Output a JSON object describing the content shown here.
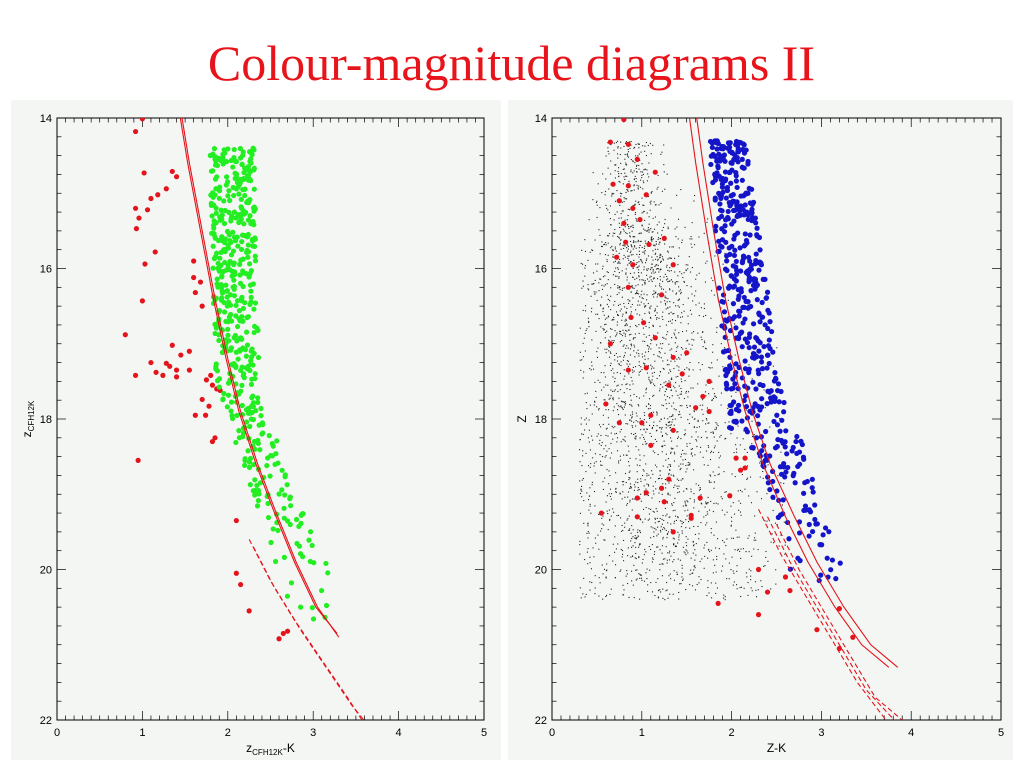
{
  "slide": {
    "title": "Colour-magnitude diagrams II"
  },
  "colors": {
    "title": "#e8141b",
    "red": "#e3141b",
    "green": "#22ee22",
    "blue": "#1414c8",
    "field": "#222222",
    "curve": "#e3141b"
  },
  "chart_data": [
    {
      "type": "scatter",
      "xlabel_main": "z",
      "xlabel_sub": "CFH12K",
      "xlabel_tail": "-K",
      "ylabel_main": "z",
      "ylabel_sub": "CFH12K",
      "xlim": [
        0,
        5
      ],
      "ylim": [
        22,
        14
      ],
      "y_inverted": true,
      "grid": false,
      "xticks": [
        "0",
        "1",
        "2",
        "3",
        "4",
        "5"
      ],
      "yticks": [
        "14",
        "16",
        "18",
        "20",
        "22"
      ],
      "series": [
        {
          "color": "red",
          "points": [
            [
              0.92,
              14.18
            ],
            [
              1.0,
              14.01
            ],
            [
              1.02,
              14.73
            ],
            [
              1.35,
              14.71
            ],
            [
              1.4,
              14.78
            ],
            [
              1.28,
              14.94
            ],
            [
              1.18,
              15.02
            ],
            [
              1.1,
              15.07
            ],
            [
              0.92,
              15.2
            ],
            [
              1.06,
              15.22
            ],
            [
              0.96,
              15.33
            ],
            [
              0.93,
              15.47
            ],
            [
              1.15,
              15.78
            ],
            [
              1.03,
              15.94
            ],
            [
              1.6,
              15.9
            ],
            [
              1.6,
              16.12
            ],
            [
              1.68,
              16.18
            ],
            [
              1.0,
              16.43
            ],
            [
              1.7,
              16.5
            ],
            [
              1.62,
              16.32
            ],
            [
              0.8,
              16.88
            ],
            [
              1.35,
              17.02
            ],
            [
              1.55,
              17.1
            ],
            [
              1.45,
              17.15
            ],
            [
              1.1,
              17.25
            ],
            [
              1.28,
              17.26
            ],
            [
              1.32,
              17.3
            ],
            [
              1.4,
              17.35
            ],
            [
              1.16,
              17.38
            ],
            [
              1.24,
              17.42
            ],
            [
              1.55,
              17.35
            ],
            [
              1.4,
              17.44
            ],
            [
              0.92,
              17.42
            ],
            [
              1.8,
              17.42
            ],
            [
              1.82,
              17.55
            ],
            [
              1.75,
              17.48
            ],
            [
              1.87,
              17.6
            ],
            [
              1.91,
              17.62
            ],
            [
              1.7,
              17.74
            ],
            [
              1.78,
              17.83
            ],
            [
              1.74,
              17.95
            ],
            [
              1.62,
              17.95
            ],
            [
              1.85,
              18.25
            ],
            [
              1.82,
              18.3
            ],
            [
              0.95,
              18.55
            ],
            [
              2.1,
              19.35
            ],
            [
              2.1,
              20.05
            ],
            [
              2.15,
              20.2
            ],
            [
              2.25,
              20.55
            ],
            [
              2.7,
              20.82
            ],
            [
              2.65,
              20.85
            ],
            [
              2.6,
              20.92
            ]
          ]
        },
        {
          "color": "green",
          "generator": "seeded",
          "seed": 7,
          "count": 520
        }
      ],
      "curves": [
        {
          "style": "solid",
          "points": [
            [
              1.45,
              13.9
            ],
            [
              1.55,
              14.6
            ],
            [
              1.7,
              15.5
            ],
            [
              1.85,
              16.4
            ],
            [
              2.0,
              17.2
            ],
            [
              2.15,
              17.9
            ],
            [
              2.35,
              18.6
            ],
            [
              2.55,
              19.2
            ],
            [
              2.8,
              19.9
            ],
            [
              3.05,
              20.5
            ],
            [
              3.3,
              20.9
            ]
          ]
        },
        {
          "style": "solid",
          "points": [
            [
              1.43,
              13.9
            ],
            [
              1.53,
              14.6
            ],
            [
              1.68,
              15.5
            ],
            [
              1.83,
              16.4
            ],
            [
              1.98,
              17.2
            ],
            [
              2.13,
              17.9
            ],
            [
              2.33,
              18.6
            ],
            [
              2.53,
              19.2
            ],
            [
              2.78,
              19.9
            ],
            [
              3.03,
              20.5
            ],
            [
              3.28,
              20.85
            ]
          ]
        },
        {
          "style": "dashed",
          "points": [
            [
              2.25,
              19.6
            ],
            [
              2.5,
              20.15
            ],
            [
              2.8,
              20.7
            ],
            [
              3.1,
              21.2
            ],
            [
              3.4,
              21.7
            ],
            [
              3.6,
              22.05
            ]
          ]
        },
        {
          "style": "dashed",
          "points": [
            [
              2.3,
              19.7
            ],
            [
              2.55,
              20.25
            ],
            [
              2.85,
              20.8
            ],
            [
              3.15,
              21.3
            ],
            [
              3.45,
              21.8
            ],
            [
              3.63,
              22.05
            ]
          ]
        }
      ]
    },
    {
      "type": "scatter",
      "xlabel_main": "Z-K",
      "ylabel_main": "Z",
      "xlim": [
        0,
        5
      ],
      "ylim": [
        22,
        14
      ],
      "y_inverted": true,
      "grid": false,
      "xticks": [
        "0",
        "1",
        "2",
        "3",
        "4",
        "5"
      ],
      "yticks": [
        "14",
        "16",
        "18",
        "20",
        "22"
      ],
      "series": [
        {
          "color": "red",
          "points": [
            [
              0.65,
              14.32
            ],
            [
              0.85,
              14.35
            ],
            [
              0.8,
              14.02
            ],
            [
              0.95,
              14.55
            ],
            [
              1.15,
              14.72
            ],
            [
              0.68,
              14.88
            ],
            [
              0.85,
              14.9
            ],
            [
              1.05,
              15.02
            ],
            [
              0.75,
              15.1
            ],
            [
              0.9,
              15.2
            ],
            [
              0.8,
              15.4
            ],
            [
              0.98,
              15.35
            ],
            [
              0.82,
              15.65
            ],
            [
              1.08,
              15.68
            ],
            [
              1.25,
              15.6
            ],
            [
              0.72,
              15.85
            ],
            [
              0.9,
              15.95
            ],
            [
              1.35,
              15.95
            ],
            [
              0.85,
              16.25
            ],
            [
              1.22,
              16.35
            ],
            [
              1.02,
              16.72
            ],
            [
              0.88,
              16.65
            ],
            [
              1.15,
              16.92
            ],
            [
              0.65,
              17.0
            ],
            [
              1.5,
              17.12
            ],
            [
              1.35,
              17.18
            ],
            [
              0.85,
              17.35
            ],
            [
              1.05,
              17.32
            ],
            [
              1.45,
              17.4
            ],
            [
              1.75,
              17.5
            ],
            [
              1.68,
              17.7
            ],
            [
              1.3,
              17.55
            ],
            [
              0.6,
              17.8
            ],
            [
              1.6,
              17.85
            ],
            [
              1.75,
              17.9
            ],
            [
              1.1,
              17.95
            ],
            [
              0.75,
              18.05
            ],
            [
              1.0,
              18.05
            ],
            [
              1.35,
              18.15
            ],
            [
              1.1,
              18.35
            ],
            [
              1.3,
              18.8
            ],
            [
              1.22,
              18.92
            ],
            [
              1.05,
              18.98
            ],
            [
              2.05,
              18.52
            ],
            [
              2.15,
              18.52
            ],
            [
              2.1,
              18.68
            ],
            [
              2.15,
              18.65
            ],
            [
              1.65,
              19.05
            ],
            [
              1.98,
              19.02
            ],
            [
              0.95,
              19.05
            ],
            [
              1.25,
              19.1
            ],
            [
              0.55,
              19.25
            ],
            [
              0.95,
              19.3
            ],
            [
              1.55,
              19.28
            ],
            [
              1.35,
              19.5
            ],
            [
              1.55,
              19.32
            ],
            [
              2.3,
              20.0
            ],
            [
              2.6,
              20.1
            ],
            [
              2.4,
              20.3
            ],
            [
              2.65,
              20.28
            ],
            [
              1.85,
              20.45
            ],
            [
              2.3,
              20.6
            ],
            [
              3.2,
              20.52
            ],
            [
              2.95,
              20.8
            ],
            [
              3.35,
              20.9
            ],
            [
              3.2,
              21.05
            ]
          ]
        },
        {
          "color": "blue",
          "generator": "seeded",
          "seed": 13,
          "count": 520
        },
        {
          "color": "field",
          "generator": "seeded",
          "seed": 29,
          "count": 2600
        }
      ],
      "curves": [
        {
          "style": "solid",
          "points": [
            [
              1.52,
              13.9
            ],
            [
              1.6,
              14.6
            ],
            [
              1.72,
              15.5
            ],
            [
              1.85,
              16.4
            ],
            [
              2.0,
              17.2
            ],
            [
              2.15,
              17.9
            ],
            [
              2.35,
              18.6
            ],
            [
              2.6,
              19.3
            ],
            [
              2.85,
              19.9
            ],
            [
              3.15,
              20.5
            ],
            [
              3.45,
              21.0
            ],
            [
              3.75,
              21.3
            ]
          ]
        },
        {
          "style": "solid",
          "points": [
            [
              1.6,
              13.9
            ],
            [
              1.68,
              14.6
            ],
            [
              1.8,
              15.5
            ],
            [
              1.93,
              16.4
            ],
            [
              2.08,
              17.2
            ],
            [
              2.23,
              17.9
            ],
            [
              2.43,
              18.6
            ],
            [
              2.7,
              19.3
            ],
            [
              2.95,
              19.9
            ],
            [
              3.25,
              20.5
            ],
            [
              3.55,
              21.0
            ],
            [
              3.85,
              21.3
            ]
          ]
        },
        {
          "style": "dashed",
          "points": [
            [
              2.3,
              19.2
            ],
            [
              2.55,
              19.8
            ],
            [
              2.8,
              20.3
            ],
            [
              3.1,
              20.9
            ],
            [
              3.4,
              21.5
            ],
            [
              3.75,
              22.05
            ]
          ]
        },
        {
          "style": "dashed",
          "points": [
            [
              2.4,
              19.3
            ],
            [
              2.65,
              19.9
            ],
            [
              2.9,
              20.4
            ],
            [
              3.2,
              21.0
            ],
            [
              3.5,
              21.6
            ],
            [
              3.85,
              22.05
            ]
          ]
        },
        {
          "style": "dashed",
          "points": [
            [
              2.5,
              19.4
            ],
            [
              2.75,
              20.0
            ],
            [
              3.0,
              20.5
            ],
            [
              3.3,
              21.1
            ],
            [
              3.6,
              21.7
            ],
            [
              3.95,
              22.05
            ]
          ]
        }
      ]
    }
  ]
}
